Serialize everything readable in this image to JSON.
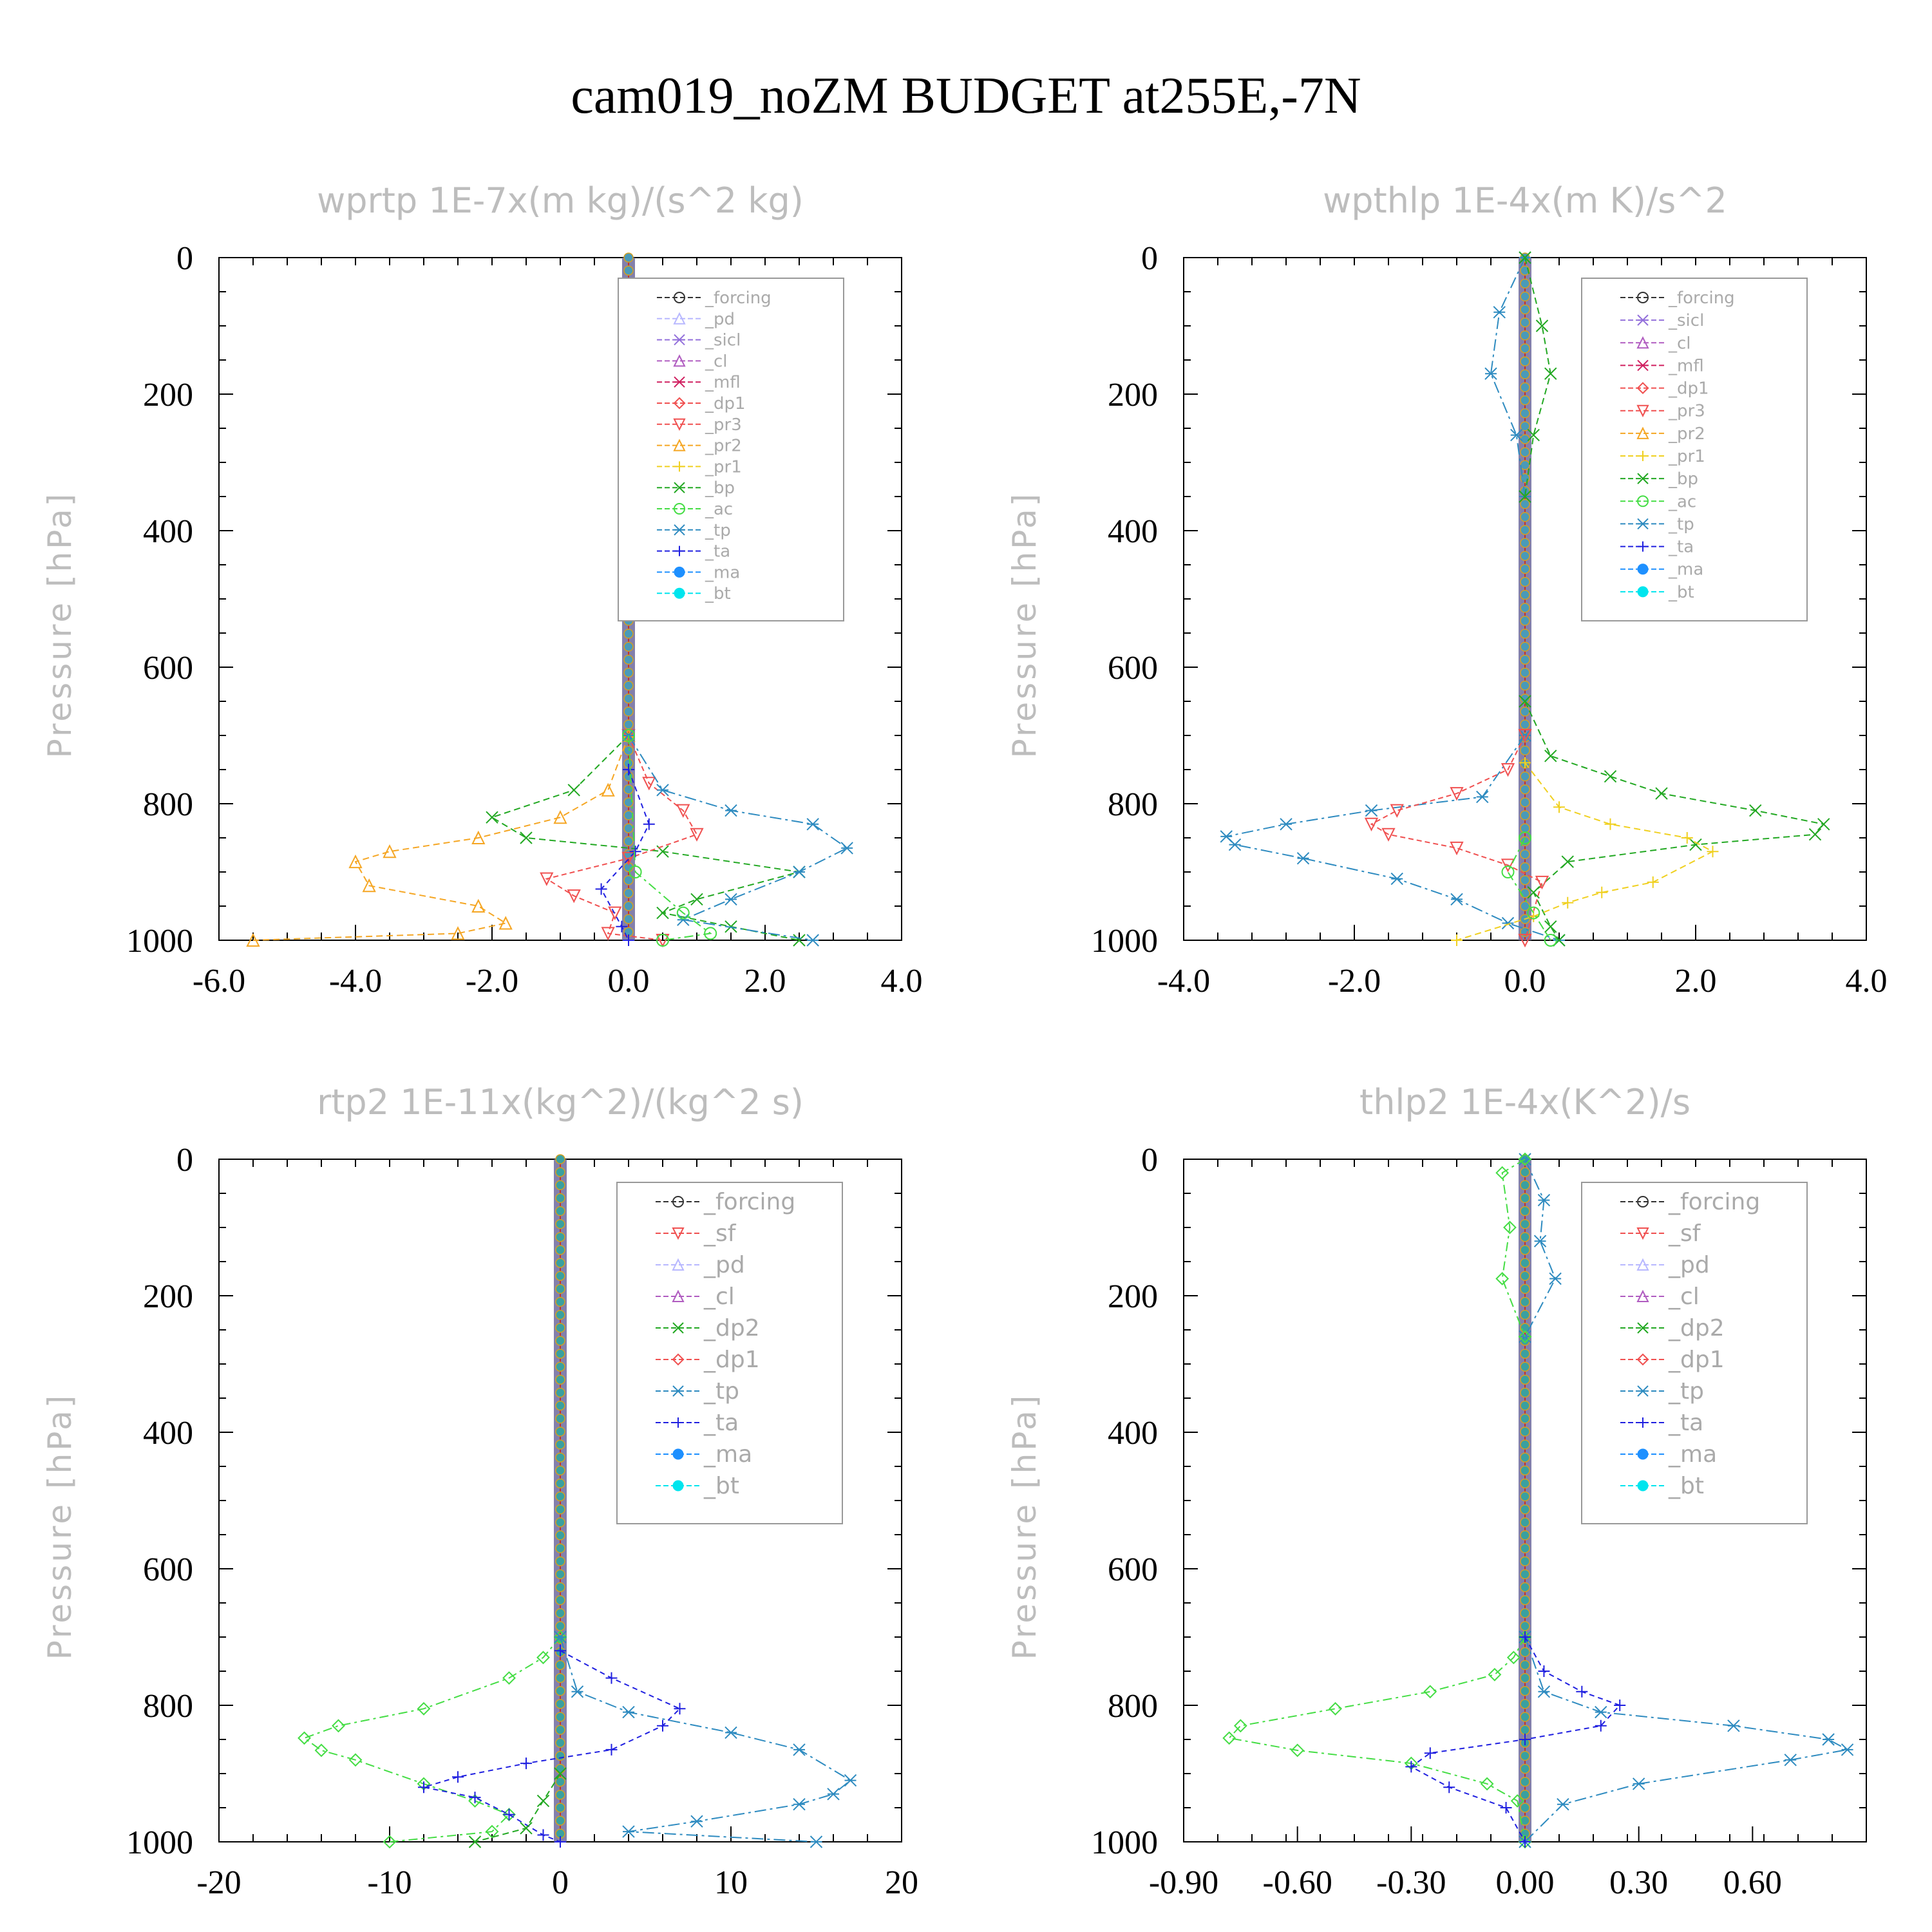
{
  "figure": {
    "title": "cam019_noZM  BUDGET at255E,-7N"
  },
  "colors": {
    "_forcing": "#333333",
    "_pd": "#b8b8ff",
    "_sicl": "#9370db",
    "_cl": "#b05cc0",
    "_mfl": "#d02060",
    "_dp1": "#f05050",
    "_pr3": "#f05050",
    "_pr2": "#f5a623",
    "_pr1": "#f0d020",
    "_bp": "#22a822",
    "_ac": "#44dd44",
    "_tp": "#2e8bc0",
    "_ta": "#2020e0",
    "_ma": "#1e90ff",
    "_bt": "#00e5ee",
    "_sf": "#f05050",
    "_dp2": "#22a822"
  },
  "chart_data": [
    {
      "type": "line",
      "title": "wprtp   1E-7x(m kg)/(s^2 kg)",
      "ylabel": "Pressure [hPa]",
      "xlim": [
        -6.0,
        4.0
      ],
      "ylim": [
        1000,
        0
      ],
      "xticks": [
        "-6.0",
        "-4.0",
        "-2.0",
        "0.0",
        "2.0",
        "4.0"
      ],
      "yticks": [
        "0",
        "200",
        "400",
        "600",
        "800",
        "1000"
      ],
      "legend_position": "upper-right",
      "legend": [
        "_forcing",
        "_pd",
        "_sicl",
        "_cl",
        "_mfl",
        "_dp1",
        "_pr3",
        "_pr2",
        "_pr1",
        "_bp",
        "_ac",
        "_tp",
        "_ta",
        "_ma",
        "_bt"
      ],
      "series": [
        {
          "name": "_pr2",
          "color": "#f5a623",
          "values": [
            [
              0,
              700
            ],
            [
              -0.3,
              780
            ],
            [
              -1.0,
              820
            ],
            [
              -2.2,
              850
            ],
            [
              -3.5,
              870
            ],
            [
              -4.0,
              885
            ],
            [
              -3.8,
              920
            ],
            [
              -2.2,
              950
            ],
            [
              -1.8,
              975
            ],
            [
              -2.5,
              990
            ],
            [
              -5.5,
              1000
            ]
          ]
        },
        {
          "name": "_bp",
          "color": "#22a822",
          "values": [
            [
              0,
              700
            ],
            [
              -0.8,
              780
            ],
            [
              -2.0,
              820
            ],
            [
              -1.5,
              850
            ],
            [
              0.5,
              870
            ],
            [
              2.5,
              900
            ],
            [
              1.0,
              940
            ],
            [
              0.5,
              960
            ],
            [
              1.5,
              980
            ],
            [
              2.5,
              1000
            ]
          ]
        },
        {
          "name": "_pr3",
          "color": "#f05050",
          "values": [
            [
              0,
              700
            ],
            [
              0.3,
              770
            ],
            [
              0.8,
              810
            ],
            [
              1.0,
              845
            ],
            [
              0.0,
              880
            ],
            [
              -1.2,
              910
            ],
            [
              -0.8,
              935
            ],
            [
              -0.2,
              960
            ],
            [
              -0.3,
              990
            ],
            [
              0.5,
              1000
            ]
          ]
        },
        {
          "name": "_tp",
          "color": "#2e8bc0",
          "values": [
            [
              0,
              700
            ],
            [
              0.5,
              780
            ],
            [
              1.5,
              810
            ],
            [
              2.7,
              830
            ],
            [
              3.2,
              865
            ],
            [
              2.5,
              900
            ],
            [
              1.5,
              940
            ],
            [
              0.8,
              970
            ],
            [
              2.7,
              1000
            ]
          ]
        },
        {
          "name": "_ta",
          "color": "#2020e0",
          "values": [
            [
              0,
              750
            ],
            [
              0.3,
              830
            ],
            [
              0.1,
              870
            ],
            [
              -0.4,
              925
            ],
            [
              -0.1,
              980
            ],
            [
              0,
              1000
            ]
          ]
        },
        {
          "name": "_ac",
          "color": "#44dd44",
          "values": [
            [
              0,
              700
            ],
            [
              0.1,
              900
            ],
            [
              0.8,
              960
            ],
            [
              1.2,
              990
            ],
            [
              0.5,
              1000
            ]
          ]
        }
      ]
    },
    {
      "type": "line",
      "title": "wpthlp   1E-4x(m K)/s^2",
      "ylabel": "Pressure [hPa]",
      "xlim": [
        -4.0,
        4.0
      ],
      "ylim": [
        1000,
        0
      ],
      "xticks": [
        "-4.0",
        "-2.0",
        "0.0",
        "2.0",
        "4.0"
      ],
      "yticks": [
        "0",
        "200",
        "400",
        "600",
        "800",
        "1000"
      ],
      "legend_position": "upper-right",
      "legend": [
        "_forcing",
        "_sicl",
        "_cl",
        "_mfl",
        "_dp1",
        "_pr3",
        "_pr2",
        "_pr1",
        "_bp",
        "_ac",
        "_tp",
        "_ta",
        "_ma",
        "_bt"
      ],
      "series": [
        {
          "name": "_tp",
          "color": "#2e8bc0",
          "values": [
            [
              0,
              700
            ],
            [
              -0.5,
              790
            ],
            [
              -1.8,
              810
            ],
            [
              -2.8,
              830
            ],
            [
              -3.5,
              848
            ],
            [
              -3.4,
              860
            ],
            [
              -2.6,
              880
            ],
            [
              -1.5,
              910
            ],
            [
              -0.8,
              940
            ],
            [
              -0.2,
              975
            ],
            [
              0.4,
              1000
            ]
          ]
        },
        {
          "name": "_bp",
          "color": "#22a822",
          "values": [
            [
              0,
              650
            ],
            [
              0.3,
              730
            ],
            [
              1.0,
              760
            ],
            [
              1.6,
              785
            ],
            [
              2.7,
              810
            ],
            [
              3.5,
              830
            ],
            [
              3.4,
              845
            ],
            [
              2.0,
              860
            ],
            [
              0.5,
              885
            ],
            [
              0.1,
              930
            ],
            [
              0.3,
              980
            ],
            [
              0.4,
              1000
            ]
          ]
        },
        {
          "name": "_pr3",
          "color": "#f05050",
          "values": [
            [
              0,
              700
            ],
            [
              -0.2,
              750
            ],
            [
              -0.8,
              785
            ],
            [
              -1.5,
              810
            ],
            [
              -1.8,
              830
            ],
            [
              -1.6,
              845
            ],
            [
              -0.8,
              865
            ],
            [
              -0.2,
              890
            ],
            [
              0.2,
              915
            ],
            [
              0,
              1000
            ]
          ]
        },
        {
          "name": "_pr1",
          "color": "#f0d020",
          "values": [
            [
              0,
              740
            ],
            [
              0.4,
              805
            ],
            [
              1.0,
              830
            ],
            [
              1.9,
              850
            ],
            [
              2.2,
              870
            ],
            [
              1.5,
              915
            ],
            [
              0.9,
              930
            ],
            [
              0.5,
              945
            ],
            [
              0.1,
              965
            ],
            [
              -0.8,
              1000
            ]
          ]
        },
        {
          "name": "_ac",
          "color": "#44dd44",
          "values": [
            [
              0,
              850
            ],
            [
              -0.2,
              900
            ],
            [
              0.1,
              960
            ],
            [
              0.3,
              1000
            ]
          ]
        },
        {
          "name": "_tp_upper",
          "color": "#2e8bc0",
          "values": [
            [
              0,
              0
            ],
            [
              -0.3,
              80
            ],
            [
              -0.4,
              170
            ],
            [
              -0.1,
              260
            ],
            [
              0,
              350
            ]
          ]
        },
        {
          "name": "_bp_upper",
          "color": "#22a822",
          "values": [
            [
              0,
              0
            ],
            [
              0.2,
              100
            ],
            [
              0.3,
              170
            ],
            [
              0.1,
              260
            ],
            [
              0,
              350
            ]
          ]
        }
      ]
    },
    {
      "type": "line",
      "title": "rtp2   1E-11x(kg^2)/(kg^2 s)",
      "ylabel": "Pressure [hPa]",
      "xlim": [
        -20,
        20
      ],
      "ylim": [
        1000,
        0
      ],
      "xticks": [
        "-20",
        "-10",
        "0",
        "10",
        "20"
      ],
      "yticks": [
        "0",
        "200",
        "400",
        "600",
        "800",
        "1000"
      ],
      "legend_position": "upper-right",
      "legend": [
        "_forcing",
        "_sf",
        "_pd",
        "_cl",
        "_dp2",
        "_dp1",
        "_tp",
        "_ta",
        "_ma",
        "_bt"
      ],
      "series": [
        {
          "name": "_dp1",
          "color": "#44dd44",
          "values": [
            [
              0,
              700
            ],
            [
              -1,
              730
            ],
            [
              -3,
              760
            ],
            [
              -8,
              805
            ],
            [
              -13,
              830
            ],
            [
              -15,
              848
            ],
            [
              -14,
              866
            ],
            [
              -12,
              880
            ],
            [
              -8,
              915
            ],
            [
              -5,
              940
            ],
            [
              -3,
              960
            ],
            [
              -4,
              985
            ],
            [
              -10,
              1000
            ]
          ]
        },
        {
          "name": "_tp",
          "color": "#2e8bc0",
          "values": [
            [
              0,
              700
            ],
            [
              1,
              780
            ],
            [
              4,
              810
            ],
            [
              10,
              840
            ],
            [
              14,
              865
            ],
            [
              17,
              910
            ],
            [
              16,
              930
            ],
            [
              14,
              945
            ],
            [
              8,
              970
            ],
            [
              4,
              985
            ],
            [
              15,
              1000
            ]
          ]
        },
        {
          "name": "_ta",
          "color": "#2020e0",
          "values": [
            [
              0,
              720
            ],
            [
              3,
              760
            ],
            [
              7,
              805
            ],
            [
              6,
              830
            ],
            [
              3,
              865
            ],
            [
              -2,
              885
            ],
            [
              -6,
              905
            ],
            [
              -8,
              920
            ],
            [
              -5,
              935
            ],
            [
              -3,
              960
            ],
            [
              -1,
              990
            ],
            [
              0,
              1000
            ]
          ]
        },
        {
          "name": "_dp2",
          "color": "#22a822",
          "values": [
            [
              0,
              900
            ],
            [
              -1,
              940
            ],
            [
              -2,
              980
            ],
            [
              -5,
              1000
            ]
          ]
        }
      ]
    },
    {
      "type": "line",
      "title": "thlp2   1E-4x(K^2)/s",
      "ylabel": "Pressure [hPa]",
      "xlim": [
        -0.9,
        0.9
      ],
      "ylim": [
        1000,
        0
      ],
      "xticks": [
        "-0.90",
        "-0.60",
        "-0.30",
        "0.00",
        "0.30",
        "0.60"
      ],
      "yticks": [
        "0",
        "200",
        "400",
        "600",
        "800",
        "1000"
      ],
      "legend_position": "upper-right",
      "legend": [
        "_forcing",
        "_sf",
        "_pd",
        "_cl",
        "_dp2",
        "_dp1",
        "_tp",
        "_ta",
        "_ma",
        "_bt"
      ],
      "series": [
        {
          "name": "_dp1",
          "color": "#44dd44",
          "values": [
            [
              0,
              700
            ],
            [
              -0.03,
              730
            ],
            [
              -0.08,
              755
            ],
            [
              -0.25,
              780
            ],
            [
              -0.5,
              805
            ],
            [
              -0.75,
              830
            ],
            [
              -0.78,
              848
            ],
            [
              -0.6,
              866
            ],
            [
              -0.3,
              885
            ],
            [
              -0.1,
              915
            ],
            [
              -0.02,
              940
            ],
            [
              0,
              1000
            ]
          ]
        },
        {
          "name": "_tp",
          "color": "#2e8bc0",
          "values": [
            [
              0,
              700
            ],
            [
              0.05,
              780
            ],
            [
              0.2,
              810
            ],
            [
              0.55,
              830
            ],
            [
              0.8,
              850
            ],
            [
              0.85,
              865
            ],
            [
              0.7,
              880
            ],
            [
              0.3,
              915
            ],
            [
              0.1,
              945
            ],
            [
              0,
              1000
            ]
          ]
        },
        {
          "name": "_ta",
          "color": "#2020e0",
          "values": [
            [
              0,
              700
            ],
            [
              0.05,
              750
            ],
            [
              0.15,
              780
            ],
            [
              0.25,
              800
            ],
            [
              0.2,
              830
            ],
            [
              0,
              850
            ],
            [
              -0.25,
              870
            ],
            [
              -0.3,
              890
            ],
            [
              -0.2,
              920
            ],
            [
              -0.05,
              950
            ],
            [
              0,
              1000
            ]
          ]
        },
        {
          "name": "_tp_upper",
          "color": "#2e8bc0",
          "values": [
            [
              0,
              0
            ],
            [
              0.05,
              60
            ],
            [
              0.04,
              120
            ],
            [
              0.08,
              175
            ],
            [
              0,
              260
            ]
          ]
        },
        {
          "name": "_dp1_upper",
          "color": "#44dd44",
          "values": [
            [
              0,
              0
            ],
            [
              -0.06,
              20
            ],
            [
              -0.04,
              100
            ],
            [
              -0.06,
              175
            ],
            [
              0,
              260
            ]
          ]
        }
      ]
    }
  ]
}
